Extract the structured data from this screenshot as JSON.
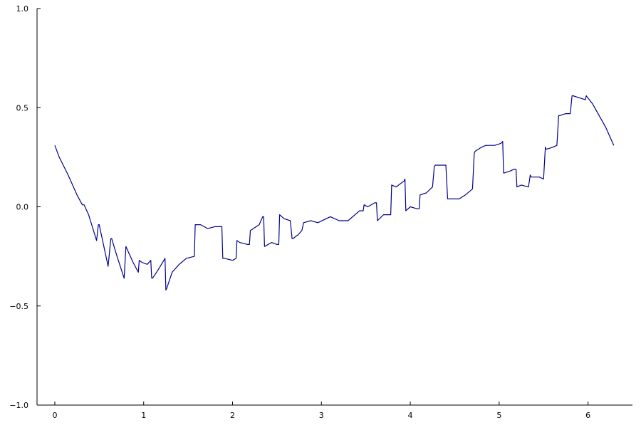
{
  "chart_data": {
    "type": "line",
    "title": "",
    "xlabel": "",
    "ylabel": "",
    "xlim": [
      -0.2,
      6.5
    ],
    "ylim": [
      -1.0,
      1.0
    ],
    "x_ticks": [
      0,
      1,
      2,
      3,
      4,
      5,
      6
    ],
    "x_tick_labels": [
      "0",
      "1",
      "2",
      "3",
      "4",
      "5",
      "6"
    ],
    "y_ticks": [
      -1.0,
      -0.5,
      0.0,
      0.5,
      1.0
    ],
    "y_tick_labels": [
      "−1.0",
      "−0.5",
      "0.0",
      "0.5",
      "1.0"
    ],
    "grid": false,
    "legend": "none",
    "series": [
      {
        "color": "#00008b",
        "x": [
          0.0,
          0.05,
          0.15,
          0.25,
          0.31,
          0.33,
          0.38,
          0.47,
          0.49,
          0.5,
          0.6,
          0.63,
          0.64,
          0.7,
          0.78,
          0.8,
          0.81,
          0.88,
          0.94,
          0.95,
          0.98,
          1.04,
          1.08,
          1.09,
          1.1,
          1.16,
          1.24,
          1.25,
          1.26,
          1.32,
          1.4,
          1.48,
          1.57,
          1.58,
          1.59,
          1.64,
          1.72,
          1.8,
          1.88,
          1.89,
          1.91,
          2.0,
          2.04,
          2.05,
          2.08,
          2.17,
          2.19,
          2.2,
          2.3,
          2.34,
          2.35,
          2.36,
          2.44,
          2.5,
          2.52,
          2.53,
          2.58,
          2.65,
          2.67,
          2.68,
          2.74,
          2.78,
          2.8,
          2.88,
          2.96,
          3.1,
          3.2,
          3.3,
          3.43,
          3.47,
          3.48,
          3.52,
          3.6,
          3.62,
          3.63,
          3.7,
          3.76,
          3.78,
          3.79,
          3.84,
          3.93,
          3.94,
          3.95,
          4.0,
          4.08,
          4.1,
          4.11,
          4.18,
          4.25,
          4.27,
          4.28,
          4.4,
          4.42,
          4.43,
          4.55,
          4.62,
          4.7,
          4.72,
          4.73,
          4.8,
          4.85,
          4.95,
          5.02,
          5.04,
          5.05,
          5.12,
          5.17,
          5.19,
          5.2,
          5.25,
          5.33,
          5.35,
          5.36,
          5.45,
          5.5,
          5.52,
          5.53,
          5.6,
          5.65,
          5.67,
          5.68,
          5.75,
          5.8,
          5.82,
          5.83,
          5.9,
          5.97,
          5.98,
          6.05,
          6.1,
          6.2,
          6.29
        ],
        "values": [
          0.31,
          0.25,
          0.16,
          0.06,
          0.01,
          0.01,
          -0.04,
          -0.17,
          -0.09,
          -0.09,
          -0.3,
          -0.16,
          -0.16,
          -0.25,
          -0.36,
          -0.2,
          -0.21,
          -0.28,
          -0.33,
          -0.27,
          -0.28,
          -0.29,
          -0.27,
          -0.36,
          -0.36,
          -0.32,
          -0.26,
          -0.42,
          -0.41,
          -0.33,
          -0.29,
          -0.26,
          -0.25,
          -0.09,
          -0.09,
          -0.09,
          -0.11,
          -0.1,
          -0.1,
          -0.26,
          -0.26,
          -0.27,
          -0.26,
          -0.17,
          -0.18,
          -0.19,
          -0.19,
          -0.12,
          -0.09,
          -0.05,
          -0.05,
          -0.2,
          -0.18,
          -0.19,
          -0.19,
          -0.04,
          -0.06,
          -0.07,
          -0.16,
          -0.16,
          -0.14,
          -0.12,
          -0.08,
          -0.07,
          -0.08,
          -0.05,
          -0.07,
          -0.07,
          -0.02,
          -0.02,
          0.01,
          0.0,
          0.02,
          0.02,
          -0.07,
          -0.04,
          -0.04,
          -0.04,
          0.11,
          0.1,
          0.13,
          0.14,
          -0.02,
          0.0,
          -0.01,
          -0.01,
          0.06,
          0.07,
          0.1,
          0.2,
          0.21,
          0.21,
          0.04,
          0.04,
          0.04,
          0.06,
          0.09,
          0.27,
          0.28,
          0.3,
          0.31,
          0.31,
          0.32,
          0.33,
          0.17,
          0.18,
          0.19,
          0.19,
          0.1,
          0.11,
          0.1,
          0.16,
          0.15,
          0.15,
          0.14,
          0.3,
          0.29,
          0.3,
          0.31,
          0.46,
          0.46,
          0.47,
          0.47,
          0.56,
          0.56,
          0.55,
          0.54,
          0.56,
          0.52,
          0.48,
          0.4,
          0.31
        ]
      }
    ]
  }
}
